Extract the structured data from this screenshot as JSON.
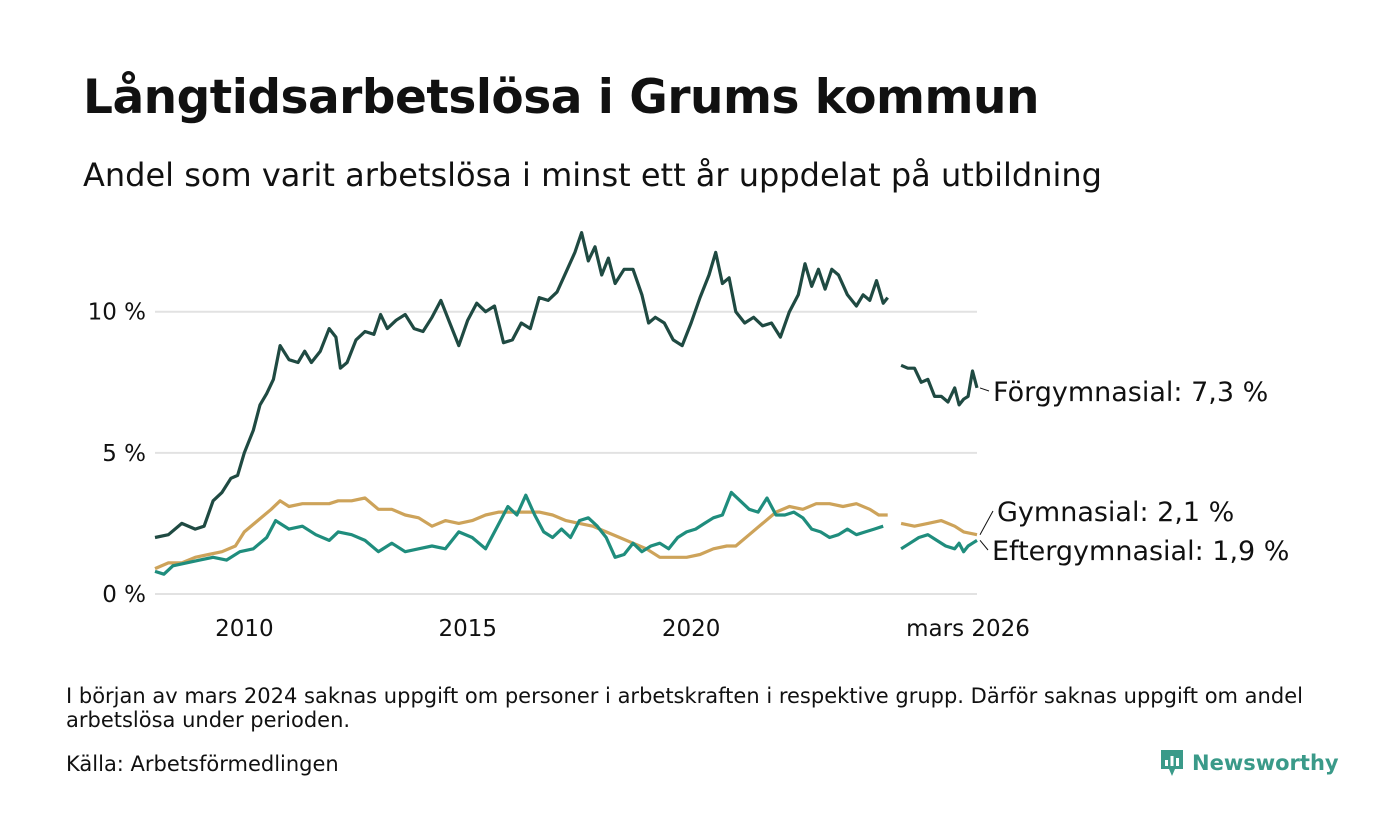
{
  "header": {
    "title": "Långtidsarbetslösa i Grums kommun",
    "subtitle": "Andel som varit arbetslösa i minst ett år uppdelat på utbildning"
  },
  "footer": {
    "note": "I början av mars 2024 saknas uppgift om personer i arbetskraften i respektive grupp. Därför saknas uppgift om andel arbetslösa under perioden.",
    "source": "Källa: Arbetsförmedlingen",
    "brand": "Newsworthy"
  },
  "chart_data": {
    "type": "line",
    "title": "Långtidsarbetslösa i Grums kommun",
    "subtitle": "Andel som varit arbetslösa i minst ett år uppdelat på utbildning",
    "xlabel": "",
    "ylabel": "",
    "xlim": [
      2008.0,
      2026.2
    ],
    "ylim": [
      0,
      13
    ],
    "y_ticks": [
      0,
      5,
      10
    ],
    "y_tick_labels": [
      "0 %",
      "5 %",
      "10 %"
    ],
    "x_ticks": [
      2010,
      2015,
      2020,
      2026.2
    ],
    "x_tick_labels": [
      "2010",
      "2015",
      "2020",
      "mars 2026"
    ],
    "grid": true,
    "gap": [
      2024.0,
      2024.3
    ],
    "series": [
      {
        "name": "Förgymnasial",
        "end_label": "Förgymnasial: 7,3 %",
        "color": "#1f4a42",
        "points": [
          [
            2008.0,
            2.0
          ],
          [
            2008.3,
            2.1
          ],
          [
            2008.6,
            2.5
          ],
          [
            2008.9,
            2.3
          ],
          [
            2009.1,
            2.4
          ],
          [
            2009.3,
            3.3
          ],
          [
            2009.5,
            3.6
          ],
          [
            2009.7,
            4.1
          ],
          [
            2009.85,
            4.2
          ],
          [
            2010.0,
            5.0
          ],
          [
            2010.2,
            5.8
          ],
          [
            2010.35,
            6.7
          ],
          [
            2010.5,
            7.1
          ],
          [
            2010.65,
            7.6
          ],
          [
            2010.8,
            8.8
          ],
          [
            2011.0,
            8.3
          ],
          [
            2011.2,
            8.2
          ],
          [
            2011.35,
            8.6
          ],
          [
            2011.5,
            8.2
          ],
          [
            2011.7,
            8.6
          ],
          [
            2011.9,
            9.4
          ],
          [
            2012.05,
            9.1
          ],
          [
            2012.15,
            8.0
          ],
          [
            2012.3,
            8.2
          ],
          [
            2012.5,
            9.0
          ],
          [
            2012.7,
            9.3
          ],
          [
            2012.9,
            9.2
          ],
          [
            2013.05,
            9.9
          ],
          [
            2013.2,
            9.4
          ],
          [
            2013.4,
            9.7
          ],
          [
            2013.6,
            9.9
          ],
          [
            2013.8,
            9.4
          ],
          [
            2014.0,
            9.3
          ],
          [
            2014.2,
            9.8
          ],
          [
            2014.4,
            10.4
          ],
          [
            2014.6,
            9.6
          ],
          [
            2014.8,
            8.8
          ],
          [
            2015.0,
            9.7
          ],
          [
            2015.2,
            10.3
          ],
          [
            2015.4,
            10.0
          ],
          [
            2015.6,
            10.2
          ],
          [
            2015.8,
            8.9
          ],
          [
            2016.0,
            9.0
          ],
          [
            2016.2,
            9.6
          ],
          [
            2016.4,
            9.4
          ],
          [
            2016.6,
            10.5
          ],
          [
            2016.8,
            10.4
          ],
          [
            2017.0,
            10.7
          ],
          [
            2017.2,
            11.4
          ],
          [
            2017.4,
            12.1
          ],
          [
            2017.55,
            12.8
          ],
          [
            2017.7,
            11.8
          ],
          [
            2017.85,
            12.3
          ],
          [
            2018.0,
            11.3
          ],
          [
            2018.15,
            11.9
          ],
          [
            2018.3,
            11.0
          ],
          [
            2018.5,
            11.5
          ],
          [
            2018.7,
            11.5
          ],
          [
            2018.9,
            10.6
          ],
          [
            2019.05,
            9.6
          ],
          [
            2019.2,
            9.8
          ],
          [
            2019.4,
            9.6
          ],
          [
            2019.6,
            9.0
          ],
          [
            2019.8,
            8.8
          ],
          [
            2020.0,
            9.6
          ],
          [
            2020.2,
            10.5
          ],
          [
            2020.4,
            11.3
          ],
          [
            2020.55,
            12.1
          ],
          [
            2020.7,
            11.0
          ],
          [
            2020.85,
            11.2
          ],
          [
            2021.0,
            10.0
          ],
          [
            2021.2,
            9.6
          ],
          [
            2021.4,
            9.8
          ],
          [
            2021.6,
            9.5
          ],
          [
            2021.8,
            9.6
          ],
          [
            2022.0,
            9.1
          ],
          [
            2022.2,
            10.0
          ],
          [
            2022.4,
            10.6
          ],
          [
            2022.55,
            11.7
          ],
          [
            2022.7,
            10.9
          ],
          [
            2022.85,
            11.5
          ],
          [
            2023.0,
            10.8
          ],
          [
            2023.15,
            11.5
          ],
          [
            2023.3,
            11.3
          ],
          [
            2023.5,
            10.6
          ],
          [
            2023.7,
            10.2
          ],
          [
            2023.85,
            10.6
          ],
          [
            2024.0,
            10.4
          ],
          [
            2024.15,
            11.1
          ],
          [
            2024.3,
            10.3
          ],
          [
            2024.4,
            10.5
          ],
          [
            2024.7,
            8.1
          ],
          [
            2024.85,
            8.0
          ],
          [
            2025.0,
            8.0
          ],
          [
            2025.15,
            7.5
          ],
          [
            2025.3,
            7.6
          ],
          [
            2025.45,
            7.0
          ],
          [
            2025.6,
            7.0
          ],
          [
            2025.75,
            6.8
          ],
          [
            2025.9,
            7.3
          ],
          [
            2026.0,
            6.7
          ],
          [
            2026.1,
            6.9
          ],
          [
            2026.2,
            7.0
          ],
          [
            2026.3,
            7.9
          ],
          [
            2026.4,
            7.3
          ]
        ]
      },
      {
        "name": "Gymnasial",
        "end_label": "Gymnasial: 2,1 %",
        "color": "#cda35a",
        "points": [
          [
            2008.0,
            0.9
          ],
          [
            2008.3,
            1.1
          ],
          [
            2008.6,
            1.1
          ],
          [
            2008.9,
            1.3
          ],
          [
            2009.2,
            1.4
          ],
          [
            2009.5,
            1.5
          ],
          [
            2009.8,
            1.7
          ],
          [
            2010.0,
            2.2
          ],
          [
            2010.3,
            2.6
          ],
          [
            2010.6,
            3.0
          ],
          [
            2010.8,
            3.3
          ],
          [
            2011.0,
            3.1
          ],
          [
            2011.3,
            3.2
          ],
          [
            2011.6,
            3.2
          ],
          [
            2011.9,
            3.2
          ],
          [
            2012.1,
            3.3
          ],
          [
            2012.4,
            3.3
          ],
          [
            2012.7,
            3.4
          ],
          [
            2013.0,
            3.0
          ],
          [
            2013.3,
            3.0
          ],
          [
            2013.6,
            2.8
          ],
          [
            2013.9,
            2.7
          ],
          [
            2014.2,
            2.4
          ],
          [
            2014.5,
            2.6
          ],
          [
            2014.8,
            2.5
          ],
          [
            2015.1,
            2.6
          ],
          [
            2015.4,
            2.8
          ],
          [
            2015.7,
            2.9
          ],
          [
            2016.0,
            2.9
          ],
          [
            2016.3,
            2.9
          ],
          [
            2016.6,
            2.9
          ],
          [
            2016.9,
            2.8
          ],
          [
            2017.2,
            2.6
          ],
          [
            2017.5,
            2.5
          ],
          [
            2017.8,
            2.4
          ],
          [
            2018.1,
            2.2
          ],
          [
            2018.4,
            2.0
          ],
          [
            2018.7,
            1.8
          ],
          [
            2019.0,
            1.6
          ],
          [
            2019.3,
            1.3
          ],
          [
            2019.6,
            1.3
          ],
          [
            2019.9,
            1.3
          ],
          [
            2020.2,
            1.4
          ],
          [
            2020.5,
            1.6
          ],
          [
            2020.8,
            1.7
          ],
          [
            2021.0,
            1.7
          ],
          [
            2021.3,
            2.1
          ],
          [
            2021.6,
            2.5
          ],
          [
            2021.9,
            2.9
          ],
          [
            2022.2,
            3.1
          ],
          [
            2022.5,
            3.0
          ],
          [
            2022.8,
            3.2
          ],
          [
            2023.1,
            3.2
          ],
          [
            2023.4,
            3.1
          ],
          [
            2023.7,
            3.2
          ],
          [
            2024.0,
            3.0
          ],
          [
            2024.2,
            2.8
          ],
          [
            2024.4,
            2.8
          ],
          [
            2024.7,
            2.5
          ],
          [
            2025.0,
            2.4
          ],
          [
            2025.3,
            2.5
          ],
          [
            2025.6,
            2.6
          ],
          [
            2025.9,
            2.4
          ],
          [
            2026.1,
            2.2
          ],
          [
            2026.4,
            2.1
          ]
        ]
      },
      {
        "name": "Eftergymnasial",
        "end_label": "Eftergymnasial: 1,9 %",
        "color": "#1f8d7d",
        "points": [
          [
            2008.0,
            0.8
          ],
          [
            2008.2,
            0.7
          ],
          [
            2008.4,
            1.0
          ],
          [
            2008.7,
            1.1
          ],
          [
            2009.0,
            1.2
          ],
          [
            2009.3,
            1.3
          ],
          [
            2009.6,
            1.2
          ],
          [
            2009.9,
            1.5
          ],
          [
            2010.2,
            1.6
          ],
          [
            2010.5,
            2.0
          ],
          [
            2010.7,
            2.6
          ],
          [
            2011.0,
            2.3
          ],
          [
            2011.3,
            2.4
          ],
          [
            2011.6,
            2.1
          ],
          [
            2011.9,
            1.9
          ],
          [
            2012.1,
            2.2
          ],
          [
            2012.4,
            2.1
          ],
          [
            2012.7,
            1.9
          ],
          [
            2013.0,
            1.5
          ],
          [
            2013.3,
            1.8
          ],
          [
            2013.6,
            1.5
          ],
          [
            2013.9,
            1.6
          ],
          [
            2014.2,
            1.7
          ],
          [
            2014.5,
            1.6
          ],
          [
            2014.8,
            2.2
          ],
          [
            2015.1,
            2.0
          ],
          [
            2015.4,
            1.6
          ],
          [
            2015.7,
            2.5
          ],
          [
            2015.9,
            3.1
          ],
          [
            2016.1,
            2.8
          ],
          [
            2016.3,
            3.5
          ],
          [
            2016.5,
            2.8
          ],
          [
            2016.7,
            2.2
          ],
          [
            2016.9,
            2.0
          ],
          [
            2017.1,
            2.3
          ],
          [
            2017.3,
            2.0
          ],
          [
            2017.5,
            2.6
          ],
          [
            2017.7,
            2.7
          ],
          [
            2017.9,
            2.4
          ],
          [
            2018.1,
            2.0
          ],
          [
            2018.3,
            1.3
          ],
          [
            2018.5,
            1.4
          ],
          [
            2018.7,
            1.8
          ],
          [
            2018.9,
            1.5
          ],
          [
            2019.1,
            1.7
          ],
          [
            2019.3,
            1.8
          ],
          [
            2019.5,
            1.6
          ],
          [
            2019.7,
            2.0
          ],
          [
            2019.9,
            2.2
          ],
          [
            2020.1,
            2.3
          ],
          [
            2020.3,
            2.5
          ],
          [
            2020.5,
            2.7
          ],
          [
            2020.7,
            2.8
          ],
          [
            2020.9,
            3.6
          ],
          [
            2021.1,
            3.3
          ],
          [
            2021.3,
            3.0
          ],
          [
            2021.5,
            2.9
          ],
          [
            2021.7,
            3.4
          ],
          [
            2021.9,
            2.8
          ],
          [
            2022.1,
            2.8
          ],
          [
            2022.3,
            2.9
          ],
          [
            2022.5,
            2.7
          ],
          [
            2022.7,
            2.3
          ],
          [
            2022.9,
            2.2
          ],
          [
            2023.1,
            2.0
          ],
          [
            2023.3,
            2.1
          ],
          [
            2023.5,
            2.3
          ],
          [
            2023.7,
            2.1
          ],
          [
            2023.9,
            2.2
          ],
          [
            2024.1,
            2.3
          ],
          [
            2024.3,
            2.4
          ],
          [
            2024.7,
            1.6
          ],
          [
            2024.9,
            1.8
          ],
          [
            2025.1,
            2.0
          ],
          [
            2025.3,
            2.1
          ],
          [
            2025.5,
            1.9
          ],
          [
            2025.7,
            1.7
          ],
          [
            2025.9,
            1.6
          ],
          [
            2026.0,
            1.8
          ],
          [
            2026.1,
            1.5
          ],
          [
            2026.2,
            1.7
          ],
          [
            2026.3,
            1.8
          ],
          [
            2026.4,
            1.9
          ]
        ]
      }
    ]
  }
}
